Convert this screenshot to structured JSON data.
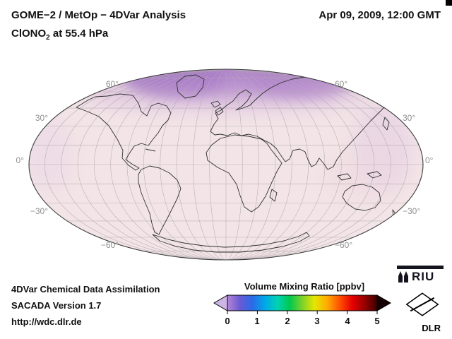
{
  "header": {
    "title": "GOME−2 / MetOp − 4DVar Analysis",
    "species": "ClONO",
    "species_sub": "2",
    "level": " at 55.4 hPa",
    "datetime": "Apr 09, 2009, 12:00 GMT"
  },
  "map": {
    "projection": "mollweide-global",
    "lat_labels": [
      "60°",
      "60°",
      "30°",
      "30°",
      "0°",
      "0°",
      "−30°",
      "−30°",
      "−60°",
      "−60°"
    ],
    "field_colors": {
      "base": "#f3e5e7",
      "polar_cap": "#a97dc9",
      "polar_lobe_west": "#9d6cc3",
      "polar_lobe_east": "#a878c8",
      "polar_fade_band": "#cba6d8",
      "midlat_east": "#dec2e2",
      "midlat_west": "#e4cee4",
      "subtrop_pink": "#eed8e0"
    }
  },
  "colorbar": {
    "title": "Volume Mixing Ratio [ppbv]",
    "ticks": [
      "0",
      "1",
      "2",
      "3",
      "4",
      "5"
    ],
    "min": 0,
    "max": 5,
    "colors": [
      "#b285d6",
      "#6a5ad4",
      "#2a6ae8",
      "#00a8e8",
      "#00d2b4",
      "#00c850",
      "#7ed22a",
      "#e6e600",
      "#ffaa00",
      "#ff5000",
      "#e60000",
      "#980000",
      "#3c0000"
    ],
    "arrow_left_color": "#cdb6e6",
    "arrow_right_color": "#140000"
  },
  "footer": {
    "line1": "4DVar Chemical Data Assimilation",
    "line2": "SACADA Version 1.7",
    "line3": "http://wdc.dlr.de"
  },
  "logos": {
    "riu_label": "RIU",
    "dlr_label": "DLR"
  }
}
